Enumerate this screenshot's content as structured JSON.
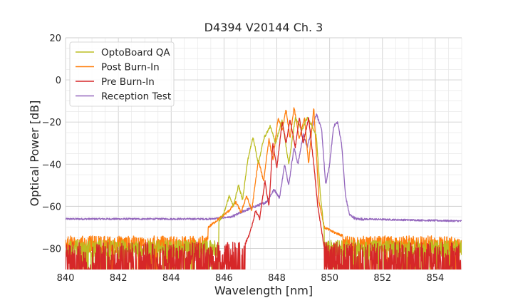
{
  "chart_data": {
    "type": "line",
    "title": "D4394 V20144 Ch. 3",
    "xlabel": "Wavelength [nm]",
    "ylabel": "Optical Power [dB]",
    "xlim": [
      840,
      855
    ],
    "ylim": [
      -90,
      20
    ],
    "xticks": [
      "840",
      "842",
      "844",
      "846",
      "848",
      "850",
      "852",
      "854"
    ],
    "yticks": [
      "20",
      "0",
      "−20",
      "−40",
      "−60",
      "−80"
    ],
    "grid": true,
    "minor_grid": true,
    "legend_position": "top-left",
    "series": [
      {
        "name": "OptoBoard QA",
        "color": "#bcbd22",
        "noise_floor": -80,
        "rise_start": 845.8,
        "fall_end": 849.8,
        "points": [
          [
            845.6,
            -72
          ],
          [
            846.0,
            -63
          ],
          [
            846.2,
            -55
          ],
          [
            846.35,
            -60
          ],
          [
            846.55,
            -50
          ],
          [
            846.7,
            -57
          ],
          [
            846.9,
            -38
          ],
          [
            847.1,
            -27
          ],
          [
            847.3,
            -40
          ],
          [
            847.5,
            -28
          ],
          [
            847.75,
            -22
          ],
          [
            847.95,
            -30
          ],
          [
            848.2,
            -19
          ],
          [
            848.45,
            -40
          ],
          [
            848.7,
            -18
          ],
          [
            848.95,
            -24
          ],
          [
            849.15,
            -18
          ],
          [
            849.35,
            -22
          ],
          [
            849.5,
            -27
          ],
          [
            849.65,
            -55
          ],
          [
            849.8,
            -72
          ]
        ]
      },
      {
        "name": "Post Burn-In",
        "color": "#ff7f0e",
        "noise_floor": -78,
        "rise_start": 845.4,
        "fall_end": 850.5,
        "points": [
          [
            845.4,
            -70
          ],
          [
            845.9,
            -65
          ],
          [
            846.2,
            -62
          ],
          [
            846.45,
            -58
          ],
          [
            846.65,
            -63
          ],
          [
            846.85,
            -55
          ],
          [
            847.05,
            -62
          ],
          [
            847.3,
            -38
          ],
          [
            847.5,
            -48
          ],
          [
            847.7,
            -28
          ],
          [
            847.85,
            -38
          ],
          [
            848.05,
            -18
          ],
          [
            848.2,
            -24
          ],
          [
            848.35,
            -14
          ],
          [
            848.5,
            -28
          ],
          [
            848.65,
            -13
          ],
          [
            848.85,
            -28
          ],
          [
            849.05,
            -18
          ],
          [
            849.2,
            -40
          ],
          [
            849.4,
            -13
          ],
          [
            849.6,
            -58
          ],
          [
            849.8,
            -70
          ],
          [
            850.1,
            -72
          ],
          [
            850.5,
            -74
          ]
        ]
      },
      {
        "name": "Pre Burn-In",
        "color": "#d62728",
        "noise_floor": -84,
        "rise_start": 846.8,
        "fall_end": 849.8,
        "points": [
          [
            846.8,
            -78
          ],
          [
            847.0,
            -72
          ],
          [
            847.2,
            -62
          ],
          [
            847.35,
            -66
          ],
          [
            847.55,
            -48
          ],
          [
            847.7,
            -60
          ],
          [
            847.85,
            -30
          ],
          [
            848.0,
            -42
          ],
          [
            848.2,
            -20
          ],
          [
            848.35,
            -30
          ],
          [
            848.5,
            -19
          ],
          [
            848.7,
            -32
          ],
          [
            848.85,
            -18
          ],
          [
            849.0,
            -30
          ],
          [
            849.2,
            -18
          ],
          [
            849.4,
            -40
          ],
          [
            849.55,
            -60
          ],
          [
            849.8,
            -80
          ]
        ]
      },
      {
        "name": "Reception Test",
        "color": "#9467bd",
        "noise_floor": -66,
        "rise_start": 846.3,
        "fall_end": 851.3,
        "points": [
          [
            840.0,
            -66
          ],
          [
            844.0,
            -66
          ],
          [
            845.5,
            -66
          ],
          [
            846.3,
            -65
          ],
          [
            846.8,
            -62
          ],
          [
            847.2,
            -60
          ],
          [
            847.6,
            -58
          ],
          [
            847.9,
            -52
          ],
          [
            848.1,
            -56
          ],
          [
            848.3,
            -40
          ],
          [
            848.45,
            -50
          ],
          [
            848.65,
            -32
          ],
          [
            848.8,
            -40
          ],
          [
            849.0,
            -26
          ],
          [
            849.15,
            -32
          ],
          [
            849.35,
            -22
          ],
          [
            849.5,
            -16
          ],
          [
            849.7,
            -24
          ],
          [
            849.85,
            -50
          ],
          [
            850.0,
            -40
          ],
          [
            850.15,
            -22
          ],
          [
            850.3,
            -20
          ],
          [
            850.45,
            -30
          ],
          [
            850.6,
            -55
          ],
          [
            850.75,
            -64
          ],
          [
            851.0,
            -66
          ],
          [
            855.0,
            -67
          ]
        ]
      }
    ]
  }
}
